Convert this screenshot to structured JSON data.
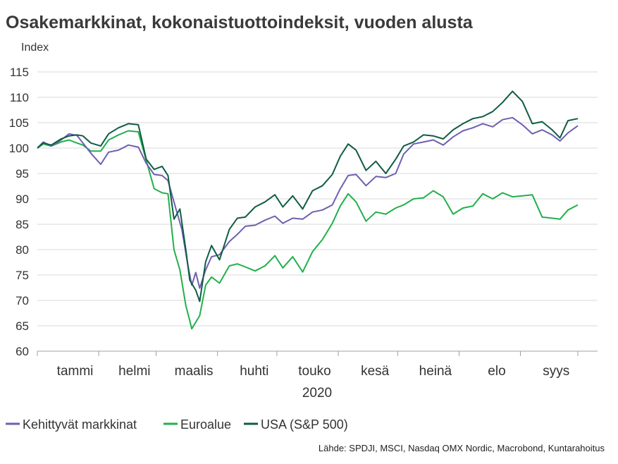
{
  "chart_data": {
    "type": "line",
    "title": "Osakemarkkinat, kokonaistuottoindeksit, vuoden alusta",
    "ylabel": "Index",
    "xlabel": "2020",
    "ylim": [
      60,
      115
    ],
    "yticks": [
      60,
      65,
      70,
      75,
      80,
      85,
      90,
      95,
      100,
      105,
      110,
      115
    ],
    "grid": true,
    "legend_position": "bottom",
    "x_domain": [
      "2020-01-01",
      "2020-09-30"
    ],
    "months": [
      {
        "label": "tammi",
        "start": "2020-01-01"
      },
      {
        "label": "helmi",
        "start": "2020-02-01"
      },
      {
        "label": "maalis",
        "start": "2020-03-01"
      },
      {
        "label": "huhti",
        "start": "2020-04-01"
      },
      {
        "label": "touko",
        "start": "2020-05-01"
      },
      {
        "label": "kesä",
        "start": "2020-06-01"
      },
      {
        "label": "heinä",
        "start": "2020-07-01"
      },
      {
        "label": "elo",
        "start": "2020-08-01"
      },
      {
        "label": "syys",
        "start": "2020-09-01"
      }
    ],
    "series": [
      {
        "name": "Kehittyvät markkinat",
        "color": "#6f5fb0",
        "points": [
          [
            "2020-01-01",
            100.0
          ],
          [
            "2020-01-04",
            101.2
          ],
          [
            "2020-01-08",
            100.4
          ],
          [
            "2020-01-13",
            101.6
          ],
          [
            "2020-01-17",
            102.8
          ],
          [
            "2020-01-21",
            102.5
          ],
          [
            "2020-01-24",
            101.0
          ],
          [
            "2020-01-28",
            99.0
          ],
          [
            "2020-02-02",
            96.8
          ],
          [
            "2020-02-06",
            99.2
          ],
          [
            "2020-02-11",
            99.6
          ],
          [
            "2020-02-16",
            100.6
          ],
          [
            "2020-02-21",
            100.2
          ],
          [
            "2020-02-25",
            97.0
          ],
          [
            "2020-02-29",
            94.8
          ],
          [
            "2020-03-04",
            94.6
          ],
          [
            "2020-03-07",
            93.6
          ],
          [
            "2020-03-11",
            88.0
          ],
          [
            "2020-03-14",
            84.0
          ],
          [
            "2020-03-17",
            77.0
          ],
          [
            "2020-03-19",
            73.0
          ],
          [
            "2020-03-21",
            75.5
          ],
          [
            "2020-03-23",
            72.4
          ],
          [
            "2020-03-26",
            76.0
          ],
          [
            "2020-03-29",
            78.6
          ],
          [
            "2020-04-02",
            79.0
          ],
          [
            "2020-04-07",
            81.6
          ],
          [
            "2020-04-11",
            83.0
          ],
          [
            "2020-04-15",
            84.6
          ],
          [
            "2020-04-20",
            84.8
          ],
          [
            "2020-04-25",
            85.8
          ],
          [
            "2020-04-30",
            86.6
          ],
          [
            "2020-05-04",
            85.2
          ],
          [
            "2020-05-09",
            86.2
          ],
          [
            "2020-05-14",
            86.0
          ],
          [
            "2020-05-19",
            87.4
          ],
          [
            "2020-05-24",
            87.8
          ],
          [
            "2020-05-29",
            88.8
          ],
          [
            "2020-06-02",
            92.0
          ],
          [
            "2020-06-06",
            94.6
          ],
          [
            "2020-06-10",
            94.8
          ],
          [
            "2020-06-15",
            92.6
          ],
          [
            "2020-06-20",
            94.4
          ],
          [
            "2020-06-25",
            94.2
          ],
          [
            "2020-06-30",
            95.0
          ],
          [
            "2020-07-04",
            98.8
          ],
          [
            "2020-07-09",
            100.8
          ],
          [
            "2020-07-14",
            101.2
          ],
          [
            "2020-07-19",
            101.6
          ],
          [
            "2020-07-24",
            100.6
          ],
          [
            "2020-07-29",
            102.2
          ],
          [
            "2020-08-03",
            103.4
          ],
          [
            "2020-08-08",
            104.0
          ],
          [
            "2020-08-13",
            104.8
          ],
          [
            "2020-08-18",
            104.2
          ],
          [
            "2020-08-23",
            105.6
          ],
          [
            "2020-08-28",
            106.0
          ],
          [
            "2020-09-02",
            104.6
          ],
          [
            "2020-09-07",
            102.8
          ],
          [
            "2020-09-12",
            103.6
          ],
          [
            "2020-09-17",
            102.6
          ],
          [
            "2020-09-21",
            101.4
          ],
          [
            "2020-09-25",
            103.0
          ],
          [
            "2020-09-30",
            104.4
          ]
        ]
      },
      {
        "name": "Euroalue",
        "color": "#22b04a",
        "points": [
          [
            "2020-01-01",
            100.0
          ],
          [
            "2020-01-04",
            100.8
          ],
          [
            "2020-01-08",
            100.4
          ],
          [
            "2020-01-13",
            101.2
          ],
          [
            "2020-01-17",
            101.6
          ],
          [
            "2020-01-21",
            101.0
          ],
          [
            "2020-01-24",
            100.6
          ],
          [
            "2020-01-28",
            99.4
          ],
          [
            "2020-02-02",
            99.4
          ],
          [
            "2020-02-06",
            101.6
          ],
          [
            "2020-02-11",
            102.6
          ],
          [
            "2020-02-16",
            103.4
          ],
          [
            "2020-02-21",
            103.2
          ],
          [
            "2020-02-25",
            97.6
          ],
          [
            "2020-02-29",
            92.0
          ],
          [
            "2020-03-04",
            91.2
          ],
          [
            "2020-03-07",
            91.0
          ],
          [
            "2020-03-10",
            80.0
          ],
          [
            "2020-03-13",
            76.0
          ],
          [
            "2020-03-16",
            69.0
          ],
          [
            "2020-03-18",
            66.0
          ],
          [
            "2020-03-19",
            64.4
          ],
          [
            "2020-03-23",
            67.0
          ],
          [
            "2020-03-26",
            73.0
          ],
          [
            "2020-03-29",
            74.6
          ],
          [
            "2020-04-02",
            73.4
          ],
          [
            "2020-04-07",
            76.8
          ],
          [
            "2020-04-11",
            77.2
          ],
          [
            "2020-04-15",
            76.6
          ],
          [
            "2020-04-20",
            75.8
          ],
          [
            "2020-04-25",
            76.8
          ],
          [
            "2020-04-30",
            78.8
          ],
          [
            "2020-05-04",
            76.4
          ],
          [
            "2020-05-09",
            78.6
          ],
          [
            "2020-05-14",
            75.6
          ],
          [
            "2020-05-19",
            79.6
          ],
          [
            "2020-05-24",
            82.0
          ],
          [
            "2020-05-29",
            85.2
          ],
          [
            "2020-06-02",
            88.6
          ],
          [
            "2020-06-06",
            91.0
          ],
          [
            "2020-06-10",
            89.4
          ],
          [
            "2020-06-15",
            85.6
          ],
          [
            "2020-06-20",
            87.4
          ],
          [
            "2020-06-25",
            87.0
          ],
          [
            "2020-06-30",
            88.2
          ],
          [
            "2020-07-04",
            88.8
          ],
          [
            "2020-07-09",
            90.0
          ],
          [
            "2020-07-14",
            90.2
          ],
          [
            "2020-07-19",
            91.6
          ],
          [
            "2020-07-24",
            90.4
          ],
          [
            "2020-07-29",
            87.0
          ],
          [
            "2020-08-03",
            88.2
          ],
          [
            "2020-08-08",
            88.6
          ],
          [
            "2020-08-13",
            91.0
          ],
          [
            "2020-08-18",
            90.0
          ],
          [
            "2020-08-23",
            91.2
          ],
          [
            "2020-08-28",
            90.4
          ],
          [
            "2020-09-02",
            90.6
          ],
          [
            "2020-09-07",
            90.8
          ],
          [
            "2020-09-12",
            86.4
          ],
          [
            "2020-09-17",
            86.2
          ],
          [
            "2020-09-21",
            86.0
          ],
          [
            "2020-09-25",
            87.8
          ],
          [
            "2020-09-30",
            88.8
          ]
        ]
      },
      {
        "name": "USA (S&P 500)",
        "color": "#0f5c45",
        "points": [
          [
            "2020-01-01",
            100.0
          ],
          [
            "2020-01-04",
            101.0
          ],
          [
            "2020-01-08",
            100.6
          ],
          [
            "2020-01-13",
            101.8
          ],
          [
            "2020-01-17",
            102.4
          ],
          [
            "2020-01-21",
            102.6
          ],
          [
            "2020-01-24",
            102.4
          ],
          [
            "2020-01-28",
            101.0
          ],
          [
            "2020-02-02",
            100.4
          ],
          [
            "2020-02-06",
            102.8
          ],
          [
            "2020-02-11",
            104.0
          ],
          [
            "2020-02-16",
            104.8
          ],
          [
            "2020-02-21",
            104.6
          ],
          [
            "2020-02-25",
            97.8
          ],
          [
            "2020-02-29",
            95.8
          ],
          [
            "2020-03-04",
            96.4
          ],
          [
            "2020-03-07",
            94.6
          ],
          [
            "2020-03-10",
            86.0
          ],
          [
            "2020-03-13",
            88.0
          ],
          [
            "2020-03-16",
            80.0
          ],
          [
            "2020-03-18",
            74.0
          ],
          [
            "2020-03-21",
            72.0
          ],
          [
            "2020-03-23",
            69.8
          ],
          [
            "2020-03-26",
            77.6
          ],
          [
            "2020-03-29",
            80.8
          ],
          [
            "2020-04-02",
            78.0
          ],
          [
            "2020-04-07",
            84.0
          ],
          [
            "2020-04-11",
            86.2
          ],
          [
            "2020-04-15",
            86.4
          ],
          [
            "2020-04-20",
            88.4
          ],
          [
            "2020-04-25",
            89.4
          ],
          [
            "2020-04-30",
            90.8
          ],
          [
            "2020-05-04",
            88.4
          ],
          [
            "2020-05-09",
            90.6
          ],
          [
            "2020-05-14",
            88.0
          ],
          [
            "2020-05-19",
            91.6
          ],
          [
            "2020-05-24",
            92.6
          ],
          [
            "2020-05-29",
            94.8
          ],
          [
            "2020-06-02",
            98.4
          ],
          [
            "2020-06-06",
            100.8
          ],
          [
            "2020-06-10",
            99.6
          ],
          [
            "2020-06-15",
            95.6
          ],
          [
            "2020-06-20",
            97.4
          ],
          [
            "2020-06-25",
            95.0
          ],
          [
            "2020-06-30",
            97.8
          ],
          [
            "2020-07-04",
            100.4
          ],
          [
            "2020-07-09",
            101.2
          ],
          [
            "2020-07-14",
            102.6
          ],
          [
            "2020-07-19",
            102.4
          ],
          [
            "2020-07-24",
            101.8
          ],
          [
            "2020-07-29",
            103.6
          ],
          [
            "2020-08-03",
            104.8
          ],
          [
            "2020-08-08",
            105.8
          ],
          [
            "2020-08-13",
            106.2
          ],
          [
            "2020-08-18",
            107.2
          ],
          [
            "2020-08-23",
            109.0
          ],
          [
            "2020-08-28",
            111.2
          ],
          [
            "2020-09-02",
            109.2
          ],
          [
            "2020-09-07",
            104.8
          ],
          [
            "2020-09-12",
            105.2
          ],
          [
            "2020-09-17",
            103.6
          ],
          [
            "2020-09-21",
            102.0
          ],
          [
            "2020-09-25",
            105.4
          ],
          [
            "2020-09-30",
            105.8
          ]
        ]
      }
    ],
    "source": "Lähde: SPDJI, MSCI, Nasdaq OMX Nordic, Macrobond, Kuntarahoitus"
  }
}
